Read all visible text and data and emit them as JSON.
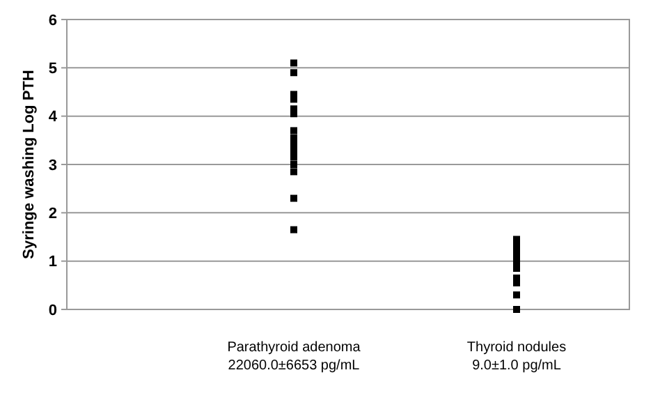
{
  "chart_data": {
    "type": "scatter",
    "ylabel": "Syringe washing Log PTH",
    "categories": [
      "Parathyroid adenoma\n22060.0±6653 pg/mL",
      "Thyroid nodules\n9.0±1.0 pg/mL"
    ],
    "series": [
      {
        "color": "#000000",
        "x": [
          "Parathyroid adenoma\n22060.0±6653 pg/mL",
          "Parathyroid adenoma\n22060.0±6653 pg/mL",
          "Parathyroid adenoma\n22060.0±6653 pg/mL",
          "Parathyroid adenoma\n22060.0±6653 pg/mL",
          "Parathyroid adenoma\n22060.0±6653 pg/mL",
          "Parathyroid adenoma\n22060.0±6653 pg/mL",
          "Parathyroid adenoma\n22060.0±6653 pg/mL",
          "Parathyroid adenoma\n22060.0±6653 pg/mL",
          "Parathyroid adenoma\n22060.0±6653 pg/mL",
          "Parathyroid adenoma\n22060.0±6653 pg/mL",
          "Parathyroid adenoma\n22060.0±6653 pg/mL",
          "Parathyroid adenoma\n22060.0±6653 pg/mL",
          "Parathyroid adenoma\n22060.0±6653 pg/mL",
          "Parathyroid adenoma\n22060.0±6653 pg/mL",
          "Parathyroid adenoma\n22060.0±6653 pg/mL",
          "Parathyroid adenoma\n22060.0±6653 pg/mL"
        ],
        "values": [
          5.1,
          4.9,
          4.45,
          4.35,
          4.15,
          4.05,
          3.7,
          3.55,
          3.45,
          3.35,
          3.25,
          3.15,
          3.0,
          2.85,
          2.3,
          1.65
        ]
      },
      {
        "color": "#000000",
        "x": [
          "Thyroid nodules\n9.0±1.0 pg/mL",
          "Thyroid nodules\n9.0±1.0 pg/mL",
          "Thyroid nodules\n9.0±1.0 pg/mL",
          "Thyroid nodules\n9.0±1.0 pg/mL",
          "Thyroid nodules\n9.0±1.0 pg/mL",
          "Thyroid nodules\n9.0±1.0 pg/mL",
          "Thyroid nodules\n9.0±1.0 pg/mL",
          "Thyroid nodules\n9.0±1.0 pg/mL",
          "Thyroid nodules\n9.0±1.0 pg/mL",
          "Thyroid nodules\n9.0±1.0 pg/mL",
          "Thyroid nodules\n9.0±1.0 pg/mL"
        ],
        "values": [
          1.45,
          1.35,
          1.25,
          1.15,
          1.05,
          0.95,
          0.85,
          0.65,
          0.55,
          0.3,
          0.0
        ]
      }
    ],
    "ylim": [
      0,
      6
    ],
    "yticks": [
      0,
      1,
      2,
      3,
      4,
      5,
      6
    ],
    "grid": "y",
    "marker": "square"
  }
}
